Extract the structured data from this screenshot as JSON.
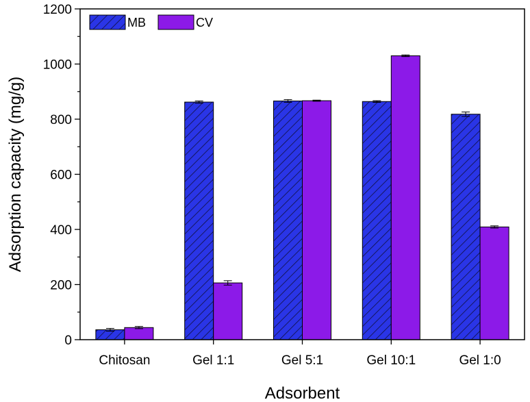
{
  "chart_data": {
    "type": "bar",
    "categories": [
      "Chitosan",
      "Gel 1:1",
      "Gel 5:1",
      "Gel 10:1",
      "Gel 1:0"
    ],
    "series": [
      {
        "name": "MB",
        "values": [
          36,
          862,
          866,
          864,
          818
        ],
        "errors": [
          5,
          4,
          5,
          3,
          8
        ],
        "color": "#2a35e6",
        "pattern": "diagonal-hatch"
      },
      {
        "name": "CV",
        "values": [
          44,
          206,
          867,
          1030,
          409
        ],
        "errors": [
          4,
          8,
          2,
          3,
          4
        ],
        "color": "#8c1ae8",
        "pattern": "solid"
      }
    ],
    "xlabel": "Adsorbent",
    "ylabel": "Adsorption capacity (mg/g)",
    "ylim": [
      0,
      1200
    ],
    "yticks": [
      0,
      200,
      400,
      600,
      800,
      1000,
      1200
    ],
    "grid": false,
    "legend_position": "top-left"
  }
}
